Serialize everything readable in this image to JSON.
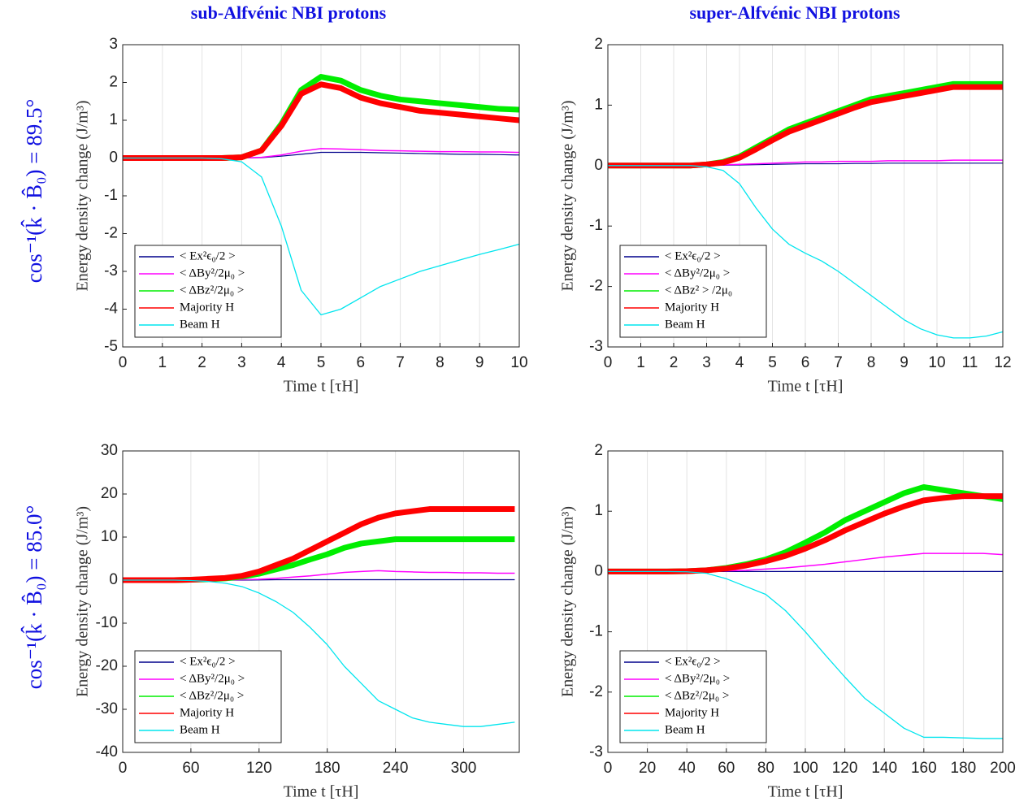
{
  "column_titles": [
    "sub-Alfvénic NBI protons",
    "super-Alfvénic NBI protons"
  ],
  "row_labels": [
    "cos⁻¹(k̂ · B̂₀) = 89.5°",
    "cos⁻¹(k̂ · B̂₀) = 85.0°"
  ],
  "chart_data": [
    {
      "type": "line",
      "xlabel": "Time t [τH]",
      "ylabel": "Energy density change (J/m³)",
      "xlim": [
        0,
        10
      ],
      "ylim": [
        -5,
        3
      ],
      "xticks": [
        0,
        1,
        2,
        3,
        4,
        5,
        6,
        7,
        8,
        9,
        10
      ],
      "yticks": [
        -5,
        -4,
        -3,
        -2,
        -1,
        0,
        1,
        2,
        3
      ],
      "grid": "x",
      "legend": "lower left",
      "x": [
        0,
        0.5,
        1,
        1.5,
        2,
        2.5,
        3,
        3.5,
        4,
        4.5,
        5,
        5.5,
        6,
        6.5,
        7,
        7.5,
        8,
        8.5,
        9,
        9.5,
        10
      ],
      "series": [
        {
          "name": "< Ex²ϵ₀/2 >",
          "color": "#00008b",
          "values": [
            0,
            0,
            0,
            0,
            0,
            0,
            0,
            0.01,
            0.05,
            0.1,
            0.15,
            0.15,
            0.15,
            0.14,
            0.13,
            0.12,
            0.11,
            0.1,
            0.1,
            0.09,
            0.08
          ]
        },
        {
          "name": "< ΔBy²/2μ₀ >",
          "color": "#ff00ff",
          "values": [
            0,
            0,
            0,
            0,
            0,
            0,
            0,
            0.02,
            0.08,
            0.18,
            0.25,
            0.24,
            0.22,
            0.2,
            0.19,
            0.18,
            0.17,
            0.17,
            0.16,
            0.16,
            0.15
          ]
        },
        {
          "name": "< ΔBz²/2μ₀ >",
          "color": "#00ee00",
          "values": [
            0,
            0,
            0,
            0,
            0,
            0,
            0.02,
            0.2,
            0.9,
            1.8,
            2.15,
            2.05,
            1.8,
            1.65,
            1.55,
            1.5,
            1.45,
            1.4,
            1.35,
            1.3,
            1.28
          ]
        },
        {
          "name": "Majority H",
          "color": "#ff0000",
          "values": [
            0,
            0,
            0,
            0,
            0,
            0,
            0.02,
            0.2,
            0.85,
            1.7,
            1.95,
            1.85,
            1.6,
            1.45,
            1.35,
            1.25,
            1.2,
            1.15,
            1.1,
            1.05,
            1.0
          ]
        },
        {
          "name": "Beam H",
          "color": "#00e5ee",
          "values": [
            0,
            0,
            0,
            0,
            0,
            -0.02,
            -0.1,
            -0.5,
            -1.8,
            -3.5,
            -4.15,
            -4.0,
            -3.7,
            -3.4,
            -3.2,
            -3.0,
            -2.85,
            -2.7,
            -2.55,
            -2.42,
            -2.28
          ]
        }
      ]
    },
    {
      "type": "line",
      "xlabel": "Time t [τH]",
      "ylabel": "Energy density change (J/m³)",
      "xlim": [
        0,
        12
      ],
      "ylim": [
        -3,
        2
      ],
      "xticks": [
        0,
        1,
        2,
        3,
        4,
        5,
        6,
        7,
        8,
        9,
        10,
        11,
        12
      ],
      "yticks": [
        -3,
        -2,
        -1,
        0,
        1,
        2
      ],
      "grid": "x",
      "legend": "lower left",
      "x": [
        0,
        0.5,
        1,
        1.5,
        2,
        2.5,
        3,
        3.5,
        4,
        4.5,
        5,
        5.5,
        6,
        6.5,
        7,
        7.5,
        8,
        8.5,
        9,
        9.5,
        10,
        10.5,
        11,
        11.5,
        12
      ],
      "series": [
        {
          "name": "< Ex²ϵ₀/2 >",
          "color": "#00008b",
          "values": [
            0,
            0,
            0,
            0,
            0,
            0,
            0,
            0.005,
            0.01,
            0.015,
            0.02,
            0.025,
            0.03,
            0.03,
            0.03,
            0.035,
            0.035,
            0.04,
            0.04,
            0.04,
            0.04,
            0.04,
            0.04,
            0.04,
            0.04
          ]
        },
        {
          "name": "< ΔBy²/2μ₀ >",
          "color": "#ff00ff",
          "values": [
            0,
            0,
            0,
            0,
            0,
            0,
            0,
            0.01,
            0.02,
            0.03,
            0.04,
            0.05,
            0.06,
            0.06,
            0.07,
            0.07,
            0.07,
            0.08,
            0.08,
            0.08,
            0.08,
            0.09,
            0.09,
            0.09,
            0.09
          ]
        },
        {
          "name": "< ΔBz² > /2μ₀",
          "color": "#00ee00",
          "values": [
            0,
            0,
            0,
            0,
            0,
            0,
            0.02,
            0.06,
            0.15,
            0.3,
            0.45,
            0.6,
            0.7,
            0.8,
            0.9,
            1.0,
            1.1,
            1.15,
            1.2,
            1.25,
            1.3,
            1.35,
            1.35,
            1.35,
            1.35
          ]
        },
        {
          "name": "Majority H",
          "color": "#ff0000",
          "values": [
            0,
            0,
            0,
            0,
            0,
            0,
            0.02,
            0.05,
            0.13,
            0.27,
            0.42,
            0.56,
            0.66,
            0.76,
            0.86,
            0.96,
            1.05,
            1.1,
            1.15,
            1.2,
            1.25,
            1.3,
            1.3,
            1.3,
            1.3
          ]
        },
        {
          "name": "Beam H",
          "color": "#00e5ee",
          "values": [
            0,
            0,
            0,
            0,
            0,
            0,
            -0.02,
            -0.08,
            -0.3,
            -0.7,
            -1.05,
            -1.3,
            -1.45,
            -1.58,
            -1.75,
            -1.95,
            -2.15,
            -2.35,
            -2.55,
            -2.7,
            -2.8,
            -2.85,
            -2.85,
            -2.82,
            -2.75
          ]
        }
      ]
    },
    {
      "type": "line",
      "xlabel": "Time t [τH]",
      "ylabel": "Energy density change (J/m³)",
      "xlim": [
        0,
        349
      ],
      "ylim": [
        -40,
        30
      ],
      "xticks": [
        0,
        60,
        120,
        180,
        240,
        300
      ],
      "yticks": [
        -40,
        -30,
        -20,
        -10,
        0,
        10,
        20,
        30
      ],
      "grid": "x",
      "legend": "lower left",
      "x": [
        0,
        15,
        30,
        45,
        60,
        75,
        90,
        105,
        120,
        135,
        150,
        165,
        180,
        195,
        210,
        225,
        240,
        255,
        270,
        285,
        300,
        315,
        330,
        345
      ],
      "series": [
        {
          "name": "< Ex²ϵ₀/2 >",
          "color": "#00008b",
          "values": [
            0,
            0,
            0,
            0,
            0,
            0,
            0,
            0,
            0.05,
            0.1,
            0.1,
            0.1,
            0.1,
            0.1,
            0.1,
            0.1,
            0.1,
            0.1,
            0.1,
            0.1,
            0.1,
            0.1,
            0.1,
            0.1
          ]
        },
        {
          "name": "< ΔBy²/2μ₀ >",
          "color": "#ff00ff",
          "values": [
            0,
            0,
            0,
            0,
            0,
            0,
            0.05,
            0.1,
            0.2,
            0.4,
            0.7,
            1.0,
            1.4,
            1.8,
            2.0,
            2.2,
            2.0,
            1.9,
            1.8,
            1.8,
            1.7,
            1.7,
            1.6,
            1.6
          ]
        },
        {
          "name": "< ΔBz²/2μ₀ >",
          "color": "#00ee00",
          "values": [
            0,
            0,
            0,
            0,
            0.1,
            0.2,
            0.4,
            0.8,
            1.5,
            2.5,
            3.5,
            4.8,
            6,
            7.5,
            8.5,
            9,
            9.5,
            9.5,
            9.5,
            9.5,
            9.5,
            9.5,
            9.5,
            9.5
          ]
        },
        {
          "name": "Majority H",
          "color": "#ff0000",
          "values": [
            0,
            0,
            0,
            0,
            0.1,
            0.3,
            0.5,
            1,
            2,
            3.5,
            5,
            7,
            9,
            11,
            13,
            14.5,
            15.5,
            16,
            16.5,
            16.5,
            16.5,
            16.5,
            16.5,
            16.5
          ]
        },
        {
          "name": "Beam H",
          "color": "#00e5ee",
          "values": [
            0,
            0,
            0,
            0,
            -0.1,
            -0.3,
            -0.7,
            -1.5,
            -3,
            -5,
            -7.5,
            -11,
            -15,
            -20,
            -24,
            -28,
            -30,
            -32,
            -33,
            -33.5,
            -34,
            -34,
            -33.5,
            -33
          ]
        }
      ]
    },
    {
      "type": "line",
      "xlabel": "Time t [τH]",
      "ylabel": "Energy density change (J/m³)",
      "xlim": [
        0,
        200
      ],
      "ylim": [
        -3,
        2
      ],
      "xticks": [
        0,
        20,
        40,
        60,
        80,
        100,
        120,
        140,
        160,
        180,
        200
      ],
      "yticks": [
        -3,
        -2,
        -1,
        0,
        1,
        2
      ],
      "grid": "x",
      "legend": "lower left",
      "x": [
        0,
        10,
        20,
        30,
        40,
        50,
        60,
        70,
        80,
        90,
        100,
        110,
        120,
        130,
        140,
        150,
        160,
        170,
        180,
        190,
        200
      ],
      "series": [
        {
          "name": "< Ex²ϵ₀/2 >",
          "color": "#00008b",
          "values": [
            0,
            0,
            0,
            0,
            0,
            0,
            0,
            0,
            0,
            0,
            0,
            0,
            0,
            0,
            0,
            0,
            0,
            0,
            0,
            0,
            0
          ]
        },
        {
          "name": "< ΔBy²/2μ₀ >",
          "color": "#ff00ff",
          "values": [
            0,
            0,
            0,
            0,
            0,
            0.005,
            0.01,
            0.02,
            0.04,
            0.06,
            0.09,
            0.12,
            0.16,
            0.2,
            0.24,
            0.27,
            0.3,
            0.3,
            0.3,
            0.3,
            0.28
          ]
        },
        {
          "name": "< ΔBz²/2μ₀ >",
          "color": "#00ee00",
          "values": [
            0,
            0,
            0,
            0,
            0.005,
            0.02,
            0.06,
            0.12,
            0.2,
            0.32,
            0.48,
            0.65,
            0.85,
            1.0,
            1.15,
            1.3,
            1.4,
            1.35,
            1.3,
            1.25,
            1.2
          ]
        },
        {
          "name": "Majority H",
          "color": "#ff0000",
          "values": [
            0,
            0,
            0,
            0,
            0.005,
            0.02,
            0.05,
            0.1,
            0.17,
            0.26,
            0.38,
            0.52,
            0.68,
            0.82,
            0.96,
            1.08,
            1.18,
            1.22,
            1.25,
            1.25,
            1.25
          ]
        },
        {
          "name": "Beam H",
          "color": "#00e5ee",
          "values": [
            0,
            0,
            0,
            0,
            -0.005,
            -0.03,
            -0.12,
            -0.25,
            -0.38,
            -0.65,
            -1.0,
            -1.38,
            -1.75,
            -2.1,
            -2.35,
            -2.6,
            -2.75,
            -2.75,
            -2.76,
            -2.77,
            -2.77
          ]
        }
      ]
    }
  ]
}
